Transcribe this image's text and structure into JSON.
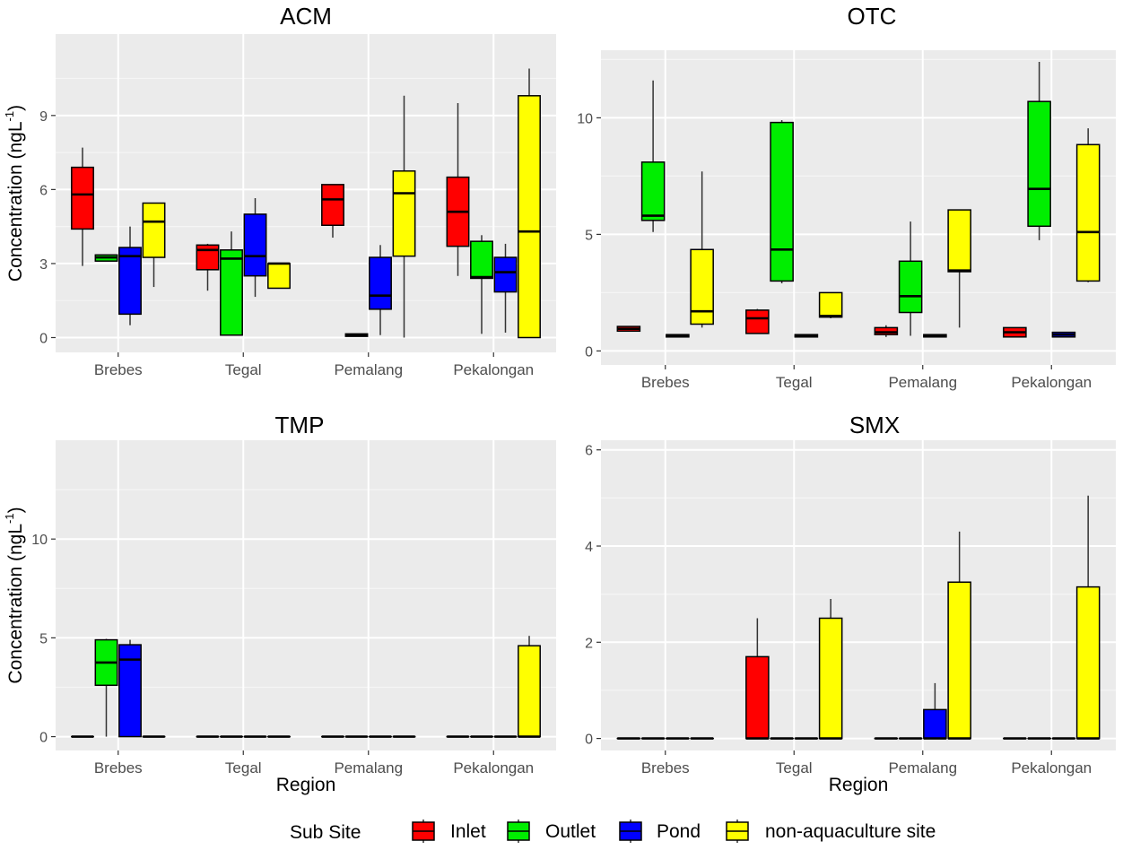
{
  "legend": {
    "title": "Sub Site",
    "items": [
      {
        "label": "Inlet",
        "color": "#ff0000"
      },
      {
        "label": "Outlet",
        "color": "#00ee00"
      },
      {
        "label": "Pond",
        "color": "#0000ff"
      },
      {
        "label": "non-aquaculture site",
        "color": "#ffff00"
      }
    ]
  },
  "chart_data": [
    {
      "type": "boxplot",
      "title": "ACM",
      "ylabel_main": "Concentration (ngL",
      "ylabel_sup": "-1",
      "ylabel_close": ")",
      "xlabel": "",
      "categories": [
        "Brebes",
        "Tegal",
        "Pemalang",
        "Pekalongan"
      ],
      "ylim": [
        -0.6,
        12.3
      ],
      "yticks": [
        0,
        3,
        6,
        9
      ],
      "grid": true,
      "series": [
        {
          "name": "Inlet",
          "boxes": [
            {
              "min": 2.9,
              "q1": 4.4,
              "median": 5.8,
              "q3": 6.9,
              "max": 7.7
            },
            {
              "min": 1.9,
              "q1": 2.75,
              "median": 3.55,
              "q3": 3.75,
              "max": 3.8
            },
            {
              "min": 4.05,
              "q1": 4.55,
              "median": 5.6,
              "q3": 6.2,
              "max": 6.2
            },
            {
              "min": 2.5,
              "q1": 3.7,
              "median": 5.1,
              "q3": 6.5,
              "max": 9.5
            }
          ]
        },
        {
          "name": "Outlet",
          "boxes": [
            {
              "min": 3.1,
              "q1": 3.1,
              "median": 3.25,
              "q3": 3.35,
              "max": 3.35
            },
            {
              "min": 0.1,
              "q1": 0.1,
              "median": 3.2,
              "q3": 3.55,
              "max": 4.3
            },
            {
              "min": 0.05,
              "q1": 0.05,
              "median": 0.1,
              "q3": 0.15,
              "max": 0.15
            },
            {
              "min": 0.15,
              "q1": 2.4,
              "median": 2.45,
              "q3": 3.9,
              "max": 4.15
            }
          ]
        },
        {
          "name": "Pond",
          "boxes": [
            {
              "min": 0.5,
              "q1": 0.95,
              "median": 3.3,
              "q3": 3.65,
              "max": 4.5
            },
            {
              "min": 1.65,
              "q1": 2.5,
              "median": 3.3,
              "q3": 5.0,
              "max": 5.65
            },
            {
              "min": 0.1,
              "q1": 1.15,
              "median": 1.7,
              "q3": 3.25,
              "max": 3.75
            },
            {
              "min": 0.2,
              "q1": 1.85,
              "median": 2.65,
              "q3": 3.25,
              "max": 3.8
            }
          ]
        },
        {
          "name": "non-aquaculture site",
          "boxes": [
            {
              "min": 2.05,
              "q1": 3.25,
              "median": 4.7,
              "q3": 5.45,
              "max": 5.45
            },
            {
              "min": 2.0,
              "q1": 2.0,
              "median": 3.0,
              "q3": 3.0,
              "max": 3.0
            },
            {
              "min": 0.0,
              "q1": 3.3,
              "median": 5.85,
              "q3": 6.75,
              "max": 9.8
            },
            {
              "min": 0.0,
              "q1": 0.0,
              "median": 4.3,
              "q3": 9.8,
              "max": 10.9
            }
          ]
        }
      ]
    },
    {
      "type": "boxplot",
      "title": "OTC",
      "ylabel_main": "",
      "ylabel_sup": "",
      "ylabel_close": "",
      "xlabel": "",
      "categories": [
        "Brebes",
        "Tegal",
        "Pemalang",
        "Pekalongan"
      ],
      "ylim": [
        -0.6,
        12.9
      ],
      "yticks": [
        0,
        5,
        10
      ],
      "grid": true,
      "series": [
        {
          "name": "Inlet",
          "boxes": [
            {
              "min": 0.85,
              "q1": 0.85,
              "median": 0.95,
              "q3": 1.05,
              "max": 1.05
            },
            {
              "min": 0.75,
              "q1": 0.75,
              "median": 1.4,
              "q3": 1.75,
              "max": 1.8
            },
            {
              "min": 0.6,
              "q1": 0.7,
              "median": 0.8,
              "q3": 1.0,
              "max": 1.1
            },
            {
              "min": 0.6,
              "q1": 0.6,
              "median": 0.8,
              "q3": 1.0,
              "max": 1.0
            }
          ]
        },
        {
          "name": "Outlet",
          "boxes": [
            {
              "min": 5.1,
              "q1": 5.6,
              "median": 5.8,
              "q3": 8.1,
              "max": 11.6
            },
            {
              "min": 2.9,
              "q1": 3.0,
              "median": 4.35,
              "q3": 9.8,
              "max": 9.9
            },
            {
              "min": 0.65,
              "q1": 1.65,
              "median": 2.35,
              "q3": 3.85,
              "max": 5.55
            },
            {
              "min": 4.75,
              "q1": 5.35,
              "median": 6.95,
              "q3": 10.7,
              "max": 12.4
            }
          ]
        },
        {
          "name": "Pond",
          "boxes": [
            {
              "min": 0.6,
              "q1": 0.6,
              "median": 0.65,
              "q3": 0.7,
              "max": 0.7
            },
            {
              "min": 0.6,
              "q1": 0.6,
              "median": 0.65,
              "q3": 0.7,
              "max": 0.7
            },
            {
              "min": 0.6,
              "q1": 0.6,
              "median": 0.65,
              "q3": 0.7,
              "max": 0.7
            },
            {
              "min": 0.6,
              "q1": 0.6,
              "median": 0.7,
              "q3": 0.8,
              "max": 0.8
            }
          ]
        },
        {
          "name": "non-aquaculture site",
          "boxes": [
            {
              "min": 1.0,
              "q1": 1.15,
              "median": 1.7,
              "q3": 4.35,
              "max": 7.7
            },
            {
              "min": 1.4,
              "q1": 1.45,
              "median": 1.5,
              "q3": 2.5,
              "max": 2.5
            },
            {
              "min": 1.0,
              "q1": 3.4,
              "median": 3.45,
              "q3": 6.05,
              "max": 6.05
            },
            {
              "min": 2.95,
              "q1": 3.0,
              "median": 5.1,
              "q3": 8.85,
              "max": 9.55
            }
          ]
        }
      ]
    },
    {
      "type": "boxplot",
      "title": "TMP",
      "ylabel_main": "Concentration (ngL",
      "ylabel_sup": "-1",
      "ylabel_close": ")",
      "xlabel": "Region",
      "categories": [
        "Brebes",
        "Tegal",
        "Pemalang",
        "Pekalongan"
      ],
      "ylim": [
        -0.7,
        15.0
      ],
      "yticks": [
        0,
        5,
        10
      ],
      "grid": true,
      "series": [
        {
          "name": "Inlet",
          "boxes": [
            {
              "min": 0,
              "q1": 0,
              "median": 0,
              "q3": 0,
              "max": 0
            },
            {
              "min": 0,
              "q1": 0,
              "median": 0,
              "q3": 0,
              "max": 0
            },
            {
              "min": 0,
              "q1": 0,
              "median": 0,
              "q3": 0,
              "max": 0
            },
            {
              "min": 0,
              "q1": 0,
              "median": 0,
              "q3": 0,
              "max": 0
            }
          ]
        },
        {
          "name": "Outlet",
          "boxes": [
            {
              "min": 0.0,
              "q1": 2.6,
              "median": 3.75,
              "q3": 4.9,
              "max": 4.95
            },
            {
              "min": 0,
              "q1": 0,
              "median": 0,
              "q3": 0,
              "max": 0
            },
            {
              "min": 0,
              "q1": 0,
              "median": 0,
              "q3": 0,
              "max": 0
            },
            {
              "min": 0,
              "q1": 0,
              "median": 0,
              "q3": 0,
              "max": 0
            }
          ]
        },
        {
          "name": "Pond",
          "boxes": [
            {
              "min": 0.0,
              "q1": 0.0,
              "median": 3.9,
              "q3": 4.65,
              "max": 4.9
            },
            {
              "min": 0,
              "q1": 0,
              "median": 0,
              "q3": 0,
              "max": 0
            },
            {
              "min": 0,
              "q1": 0,
              "median": 0,
              "q3": 0,
              "max": 0
            },
            {
              "min": 0,
              "q1": 0,
              "median": 0,
              "q3": 0,
              "max": 0
            }
          ]
        },
        {
          "name": "non-aquaculture site",
          "boxes": [
            {
              "min": 0,
              "q1": 0,
              "median": 0,
              "q3": 0,
              "max": 0
            },
            {
              "min": 0,
              "q1": 0,
              "median": 0,
              "q3": 0,
              "max": 0
            },
            {
              "min": 0,
              "q1": 0,
              "median": 0,
              "q3": 0,
              "max": 0
            },
            {
              "min": 0.0,
              "q1": 0.0,
              "median": 0.0,
              "q3": 4.6,
              "max": 5.1
            }
          ]
        }
      ]
    },
    {
      "type": "boxplot",
      "title": "SMX",
      "ylabel_main": "",
      "ylabel_sup": "",
      "ylabel_close": "",
      "xlabel": "Region",
      "categories": [
        "Brebes",
        "Tegal",
        "Pemalang",
        "Pekalongan"
      ],
      "ylim": [
        -0.25,
        6.2
      ],
      "yticks": [
        0,
        2,
        4,
        6
      ],
      "grid": true,
      "series": [
        {
          "name": "Inlet",
          "boxes": [
            {
              "min": 0,
              "q1": 0,
              "median": 0,
              "q3": 0,
              "max": 0
            },
            {
              "min": 0.0,
              "q1": 0.0,
              "median": 0.0,
              "q3": 1.7,
              "max": 2.5
            },
            {
              "min": 0,
              "q1": 0,
              "median": 0,
              "q3": 0,
              "max": 0
            },
            {
              "min": 0,
              "q1": 0,
              "median": 0,
              "q3": 0,
              "max": 0
            }
          ]
        },
        {
          "name": "Outlet",
          "boxes": [
            {
              "min": 0,
              "q1": 0,
              "median": 0,
              "q3": 0,
              "max": 0
            },
            {
              "min": 0,
              "q1": 0,
              "median": 0,
              "q3": 0,
              "max": 0
            },
            {
              "min": 0,
              "q1": 0,
              "median": 0,
              "q3": 0,
              "max": 0
            },
            {
              "min": 0,
              "q1": 0,
              "median": 0,
              "q3": 0,
              "max": 0
            }
          ]
        },
        {
          "name": "Pond",
          "boxes": [
            {
              "min": 0,
              "q1": 0,
              "median": 0,
              "q3": 0,
              "max": 0
            },
            {
              "min": 0,
              "q1": 0,
              "median": 0,
              "q3": 0,
              "max": 0
            },
            {
              "min": 0.0,
              "q1": 0.0,
              "median": 0.0,
              "q3": 0.6,
              "max": 1.15
            },
            {
              "min": 0,
              "q1": 0,
              "median": 0,
              "q3": 0,
              "max": 0
            }
          ]
        },
        {
          "name": "non-aquaculture site",
          "boxes": [
            {
              "min": 0,
              "q1": 0,
              "median": 0,
              "q3": 0,
              "max": 0
            },
            {
              "min": 0.0,
              "q1": 0.0,
              "median": 0.0,
              "q3": 2.5,
              "max": 2.9
            },
            {
              "min": 0.0,
              "q1": 0.0,
              "median": 0.0,
              "q3": 3.25,
              "max": 4.3
            },
            {
              "min": 0.0,
              "q1": 0.0,
              "median": 0.0,
              "q3": 3.15,
              "max": 5.05
            }
          ]
        }
      ]
    }
  ]
}
